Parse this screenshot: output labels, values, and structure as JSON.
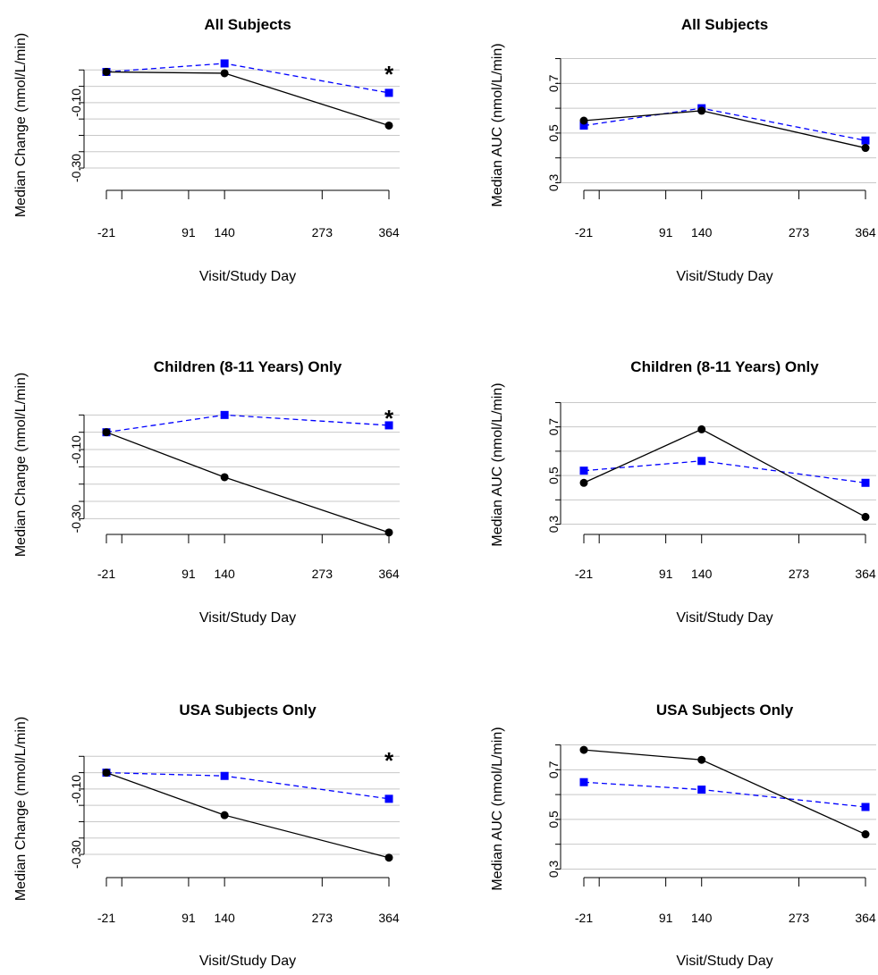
{
  "chart_data": [
    {
      "type": "line",
      "title": "All Subjects",
      "xlabel": "Visit/Study Day",
      "ylabel": "Median Change (nmol/L/min)",
      "x_ticks": [
        -21,
        91,
        140,
        273,
        364
      ],
      "ylim": [
        -0.36,
        0.05
      ],
      "y_ticks": [
        -0.3,
        -0.1
      ],
      "y_tick_labels": [
        "-0.30",
        "-0.10"
      ],
      "y_grid": [
        -0.3,
        -0.25,
        -0.2,
        -0.15,
        -0.1,
        -0.05,
        0.0
      ],
      "significance_marker": "*",
      "significance_x": 364,
      "series": [
        {
          "x": [
            -21,
            140,
            364
          ],
          "values": [
            -0.006,
            -0.01,
            -0.17
          ],
          "color": "#000000",
          "dash": false,
          "marker": "circle"
        },
        {
          "x": [
            -21,
            140,
            364
          ],
          "values": [
            -0.006,
            0.02,
            -0.07
          ],
          "color": "#0000ff",
          "dash": true,
          "marker": "square"
        }
      ]
    },
    {
      "type": "line",
      "title": "All Subjects",
      "xlabel": "Visit/Study Day",
      "ylabel": "Median AUC (nmol/L/min)",
      "x_ticks": [
        -21,
        91,
        140,
        273,
        364
      ],
      "ylim": [
        0.28,
        0.82
      ],
      "y_ticks": [
        0.3,
        0.5,
        0.7
      ],
      "y_tick_labels": [
        "0.3",
        "0.5",
        "0.7"
      ],
      "y_grid": [
        0.3,
        0.4,
        0.5,
        0.6,
        0.7,
        0.8
      ],
      "series": [
        {
          "x": [
            -21,
            140,
            364
          ],
          "values": [
            0.55,
            0.59,
            0.44
          ],
          "color": "#000000",
          "dash": false,
          "marker": "circle"
        },
        {
          "x": [
            -21,
            140,
            364
          ],
          "values": [
            0.53,
            0.6,
            0.47
          ],
          "color": "#0000ff",
          "dash": true,
          "marker": "square"
        }
      ]
    },
    {
      "type": "line",
      "title": "Children (8-11 Years) Only",
      "xlabel": "Visit/Study Day",
      "ylabel": "Median Change (nmol/L/min)",
      "x_ticks": [
        -21,
        91,
        140,
        273,
        364
      ],
      "ylim": [
        -0.33,
        0.05
      ],
      "y_ticks": [
        -0.3,
        -0.1
      ],
      "y_tick_labels": [
        "-0.30",
        "-0.10"
      ],
      "y_grid": [
        -0.3,
        -0.25,
        -0.2,
        -0.15,
        -0.1,
        -0.05,
        0.0
      ],
      "significance_marker": "*",
      "significance_x": 364,
      "series": [
        {
          "x": [
            -21,
            140,
            364
          ],
          "values": [
            -0.05,
            -0.18,
            -0.34
          ],
          "color": "#000000",
          "dash": false,
          "marker": "circle"
        },
        {
          "x": [
            -21,
            140,
            364
          ],
          "values": [
            -0.05,
            0.0,
            -0.03
          ],
          "color": "#0000ff",
          "dash": true,
          "marker": "square"
        }
      ]
    },
    {
      "type": "line",
      "title": "Children (8-11 Years) Only",
      "xlabel": "Visit/Study Day",
      "ylabel": "Median AUC (nmol/L/min)",
      "x_ticks": [
        -21,
        91,
        140,
        273,
        364
      ],
      "ylim": [
        0.28,
        0.82
      ],
      "y_ticks": [
        0.3,
        0.5,
        0.7
      ],
      "y_tick_labels": [
        "0.3",
        "0.5",
        "0.7"
      ],
      "y_grid": [
        0.3,
        0.4,
        0.5,
        0.6,
        0.7,
        0.8
      ],
      "series": [
        {
          "x": [
            -21,
            140,
            364
          ],
          "values": [
            0.47,
            0.69,
            0.33
          ],
          "color": "#000000",
          "dash": false,
          "marker": "circle"
        },
        {
          "x": [
            -21,
            140,
            364
          ],
          "values": [
            0.52,
            0.56,
            0.47
          ],
          "color": "#0000ff",
          "dash": true,
          "marker": "square"
        }
      ]
    },
    {
      "type": "line",
      "title": "USA Subjects Only",
      "xlabel": "Visit/Study Day",
      "ylabel": "Median Change (nmol/L/min)",
      "x_ticks": [
        -21,
        91,
        140,
        273,
        364
      ],
      "ylim": [
        -0.36,
        0.05
      ],
      "y_ticks": [
        -0.3,
        -0.1
      ],
      "y_tick_labels": [
        "-0.30",
        "-0.10"
      ],
      "y_grid": [
        -0.3,
        -0.25,
        -0.2,
        -0.15,
        -0.1,
        -0.05,
        0.0
      ],
      "significance_marker": "*",
      "significance_x": 364,
      "series": [
        {
          "x": [
            -21,
            140,
            364
          ],
          "values": [
            -0.05,
            -0.18,
            -0.31
          ],
          "color": "#000000",
          "dash": false,
          "marker": "circle"
        },
        {
          "x": [
            -21,
            140,
            364
          ],
          "values": [
            -0.05,
            -0.06,
            -0.13
          ],
          "color": "#0000ff",
          "dash": true,
          "marker": "square"
        }
      ]
    },
    {
      "type": "line",
      "title": "USA Subjects Only",
      "xlabel": "Visit/Study Day",
      "ylabel": "Median AUC (nmol/L/min)",
      "x_ticks": [
        -21,
        91,
        140,
        273,
        364
      ],
      "ylim": [
        0.28,
        0.82
      ],
      "y_ticks": [
        0.3,
        0.5,
        0.7
      ],
      "y_tick_labels": [
        "0.3",
        "0.5",
        "0.7"
      ],
      "y_grid": [
        0.3,
        0.4,
        0.5,
        0.6,
        0.7,
        0.8
      ],
      "series": [
        {
          "x": [
            -21,
            140,
            364
          ],
          "values": [
            0.78,
            0.74,
            0.44
          ],
          "color": "#000000",
          "dash": false,
          "marker": "circle"
        },
        {
          "x": [
            -21,
            140,
            364
          ],
          "values": [
            0.65,
            0.62,
            0.55
          ],
          "color": "#0000ff",
          "dash": true,
          "marker": "square"
        }
      ]
    }
  ]
}
